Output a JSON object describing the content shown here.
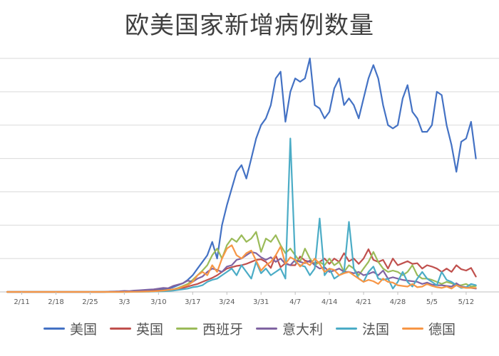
{
  "chart_data": {
    "type": "line",
    "title": "欧美国家新增病例数量",
    "xlabel": "",
    "ylabel": "",
    "grid": true,
    "legend_position": "bottom",
    "x_ticks": [
      "2/11",
      "2/18",
      "2/25",
      "3/3",
      "3/10",
      "3/17",
      "3/24",
      "3/31",
      "4/7",
      "4/14",
      "4/21",
      "4/28",
      "5/5",
      "5/12"
    ],
    "ylim": [
      0,
      35000
    ],
    "y_gridlines": [
      0,
      5000,
      10000,
      15000,
      20000,
      25000,
      30000,
      35000
    ],
    "x_start": "2/8",
    "series": [
      {
        "name": "美国",
        "color": "#4472C4",
        "values": [
          0,
          0,
          0,
          0,
          0,
          0,
          0,
          0,
          0,
          0,
          0,
          0,
          0,
          0,
          0,
          0,
          0,
          0,
          0,
          5,
          10,
          15,
          20,
          30,
          40,
          60,
          80,
          100,
          120,
          150,
          200,
          300,
          400,
          500,
          700,
          1000,
          1300,
          1800,
          2500,
          3500,
          4500,
          5500,
          7500,
          5000,
          10000,
          13000,
          15500,
          18000,
          19000,
          17000,
          20000,
          23000,
          25000,
          26000,
          28000,
          32000,
          33000,
          25500,
          30000,
          32000,
          31500,
          32000,
          35000,
          28000,
          27500,
          26000,
          27000,
          30500,
          32000,
          28000,
          29000,
          28000,
          26000,
          29000,
          32000,
          34000,
          32000,
          28000,
          25000,
          24500,
          25000,
          29000,
          31000,
          27000,
          26000,
          24000,
          24000,
          25000,
          30000,
          29500,
          25000,
          22000,
          18000,
          22500,
          23000,
          25500,
          20000
        ]
      },
      {
        "name": "英国",
        "color": "#C0504D",
        "values": [
          0,
          0,
          0,
          0,
          0,
          0,
          0,
          0,
          0,
          0,
          0,
          0,
          0,
          0,
          0,
          0,
          0,
          0,
          0,
          0,
          5,
          10,
          15,
          20,
          30,
          40,
          50,
          60,
          80,
          100,
          150,
          200,
          250,
          300,
          400,
          500,
          600,
          800,
          1000,
          1200,
          1500,
          1800,
          2100,
          2500,
          3000,
          3500,
          3700,
          3900,
          4000,
          4200,
          4500,
          4800,
          4900,
          4500,
          3600,
          5500,
          3700,
          4300,
          4000,
          4000,
          5300,
          4700,
          4500,
          4300,
          4500,
          5000,
          4200,
          5000,
          4500,
          5800,
          4600,
          5000,
          4200,
          5000,
          6400,
          4800,
          4500,
          4800,
          3500,
          5000,
          4000,
          4300,
          4600,
          4200,
          4300,
          3500,
          4000,
          3800,
          3500,
          3000,
          3500,
          3000,
          4000,
          3400,
          3200,
          3600,
          2300
        ]
      },
      {
        "name": "西班牙",
        "color": "#9BBB59",
        "values": [
          0,
          0,
          0,
          0,
          0,
          0,
          0,
          0,
          0,
          0,
          0,
          0,
          0,
          0,
          0,
          0,
          0,
          0,
          0,
          0,
          0,
          0,
          0,
          0,
          5,
          10,
          15,
          20,
          30,
          50,
          80,
          120,
          200,
          300,
          400,
          600,
          900,
          1200,
          1800,
          2500,
          3200,
          4000,
          5500,
          6500,
          5000,
          7000,
          8000,
          7500,
          8500,
          7500,
          8000,
          9000,
          6000,
          8000,
          7500,
          8500,
          7000,
          5800,
          6500,
          5500,
          4500,
          6500,
          5000,
          4000,
          4500,
          4000,
          5000,
          4000,
          4500,
          3000,
          4000,
          3500,
          2500,
          3500,
          4500,
          6000,
          4500,
          3500,
          3000,
          3200,
          3000,
          2500,
          3000,
          4000,
          2500,
          2000,
          2000,
          1800,
          1500,
          1200,
          1500,
          1300,
          1000,
          1000,
          1200,
          800,
          900
        ]
      },
      {
        "name": "意大利",
        "color": "#8064A2",
        "values": [
          0,
          0,
          0,
          0,
          0,
          0,
          0,
          0,
          0,
          0,
          0,
          0,
          0,
          0,
          0,
          0,
          0,
          0,
          0,
          0,
          0,
          50,
          80,
          100,
          150,
          120,
          200,
          250,
          300,
          350,
          400,
          500,
          600,
          550,
          900,
          1100,
          1300,
          1700,
          1500,
          2000,
          2300,
          3000,
          3500,
          3300,
          3000,
          3800,
          4000,
          4800,
          5000,
          5500,
          6000,
          5800,
          5200,
          4800,
          5200,
          4500,
          5000,
          4200,
          4000,
          4800,
          4500,
          4300,
          4700,
          4000,
          3500,
          3700,
          3000,
          3200,
          3500,
          3000,
          3000,
          2800,
          3000,
          2500,
          2700,
          3000,
          2500,
          3200,
          2000,
          2200,
          2000,
          1800,
          1700,
          1600,
          1500,
          1200,
          1400,
          1100,
          1000,
          1000,
          900,
          800,
          1300,
          800,
          700,
          600,
          500
        ]
      },
      {
        "name": "法国",
        "color": "#4BACC6",
        "values": [
          0,
          0,
          0,
          0,
          0,
          0,
          0,
          0,
          0,
          0,
          0,
          0,
          0,
          0,
          0,
          0,
          0,
          0,
          0,
          0,
          0,
          0,
          0,
          0,
          0,
          5,
          10,
          20,
          30,
          40,
          50,
          80,
          100,
          150,
          200,
          300,
          400,
          500,
          700,
          800,
          1000,
          1500,
          1800,
          2000,
          2500,
          3000,
          3500,
          2500,
          4000,
          3000,
          2000,
          4500,
          2800,
          3500,
          2500,
          3000,
          3500,
          2000,
          23000,
          4500,
          4000,
          3800,
          2500,
          3500,
          11000,
          2500,
          3500,
          2000,
          2500,
          3000,
          10500,
          3500,
          2000,
          1500,
          3000,
          3800,
          2000,
          1800,
          2000,
          500,
          1500,
          3000,
          1500,
          800,
          2000,
          3000,
          2000,
          1500,
          1000,
          3000,
          1800,
          1500,
          1000,
          600,
          700,
          1200,
          1000
        ]
      },
      {
        "name": "德国",
        "color": "#F79646",
        "values": [
          0,
          0,
          0,
          0,
          0,
          0,
          0,
          0,
          0,
          0,
          0,
          0,
          0,
          0,
          0,
          0,
          0,
          0,
          0,
          0,
          0,
          0,
          0,
          0,
          5,
          10,
          20,
          30,
          50,
          80,
          100,
          150,
          200,
          300,
          400,
          500,
          800,
          1000,
          1500,
          2500,
          3000,
          2500,
          4000,
          3000,
          5000,
          6500,
          7000,
          5500,
          5000,
          5800,
          6200,
          4700,
          3200,
          4000,
          4500,
          5500,
          6800,
          4200,
          5200,
          4800,
          3800,
          4500,
          4000,
          5000,
          4200,
          3000,
          3500,
          3300,
          2500,
          2800,
          3000,
          2500,
          2000,
          1500,
          1800,
          1600,
          1200,
          2000,
          1500,
          1400,
          1000,
          900,
          800,
          1200,
          700,
          800,
          1200,
          900,
          700,
          600,
          800,
          500,
          1000,
          700,
          600,
          600,
          600
        ]
      }
    ]
  }
}
